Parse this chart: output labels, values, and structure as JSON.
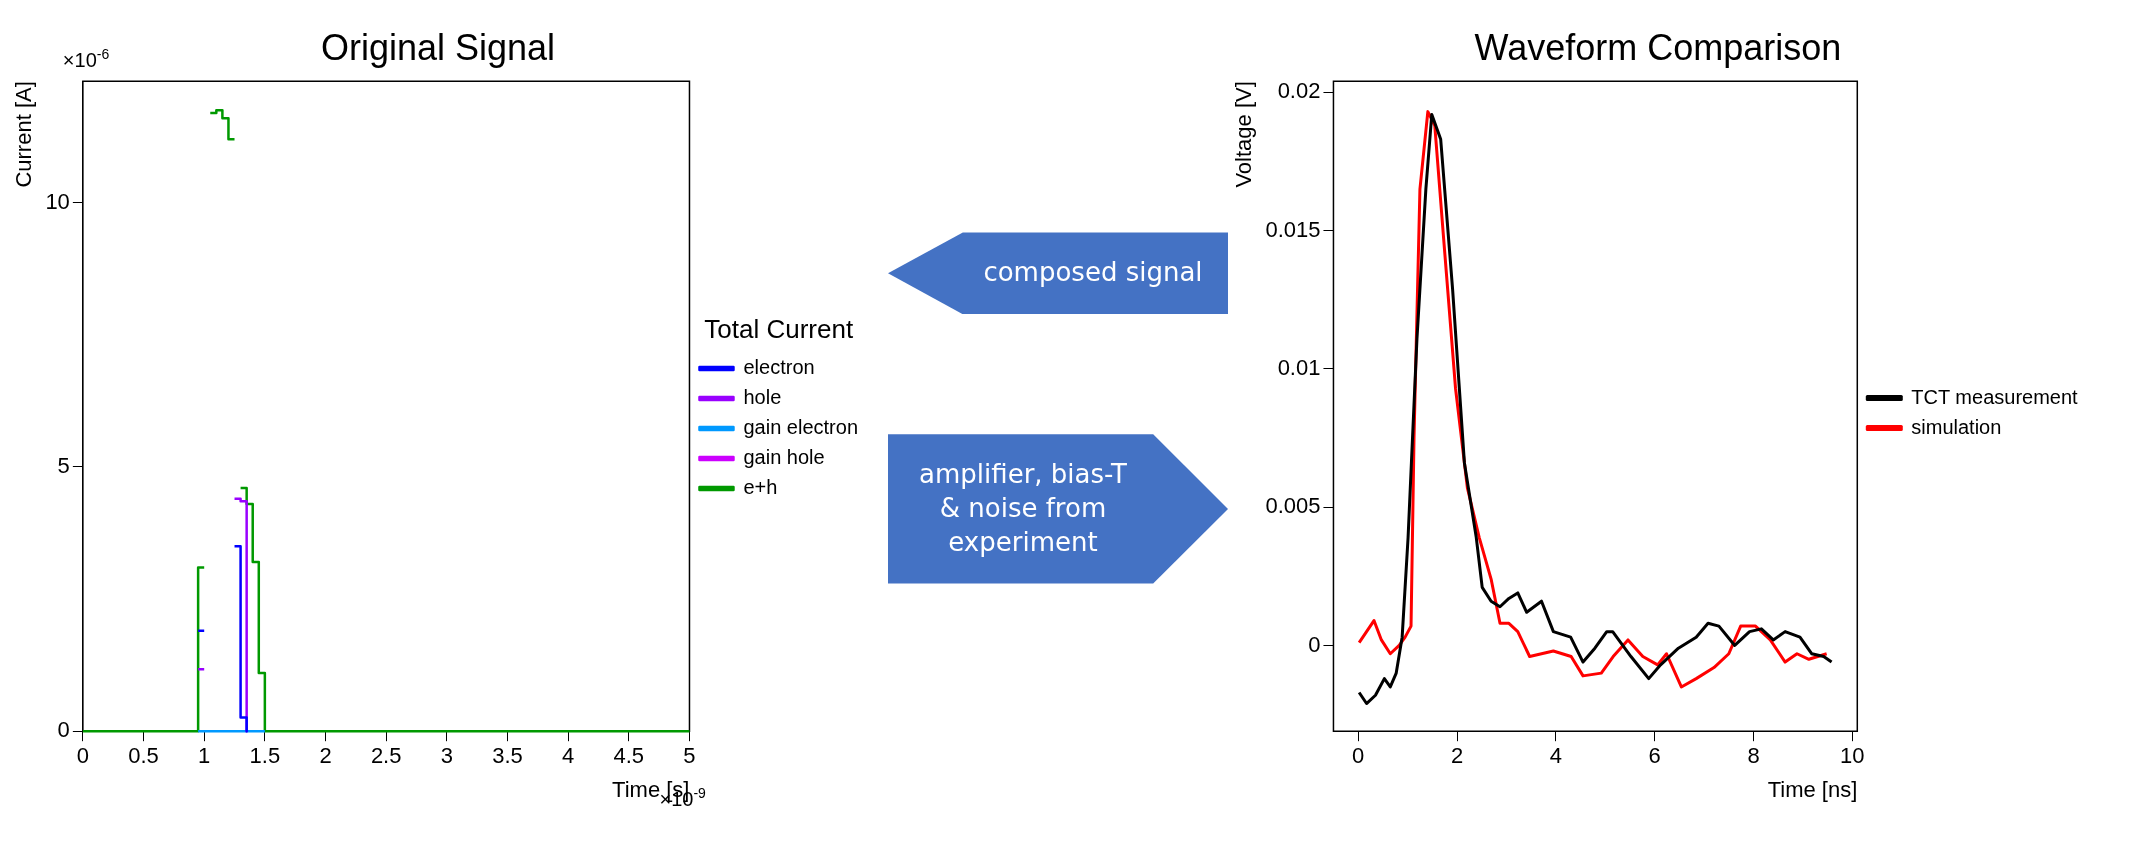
{
  "chart_data": [
    {
      "type": "step",
      "title": "Original Signal",
      "xlabel": "Time [s]",
      "ylabel": "Current [A]",
      "legend_title": "Total Current",
      "xlim": [
        0,
        5
      ],
      "xticks": [
        0,
        0.5,
        1,
        1.5,
        2,
        2.5,
        3,
        3.5,
        4,
        4.5,
        5
      ],
      "ylim": [
        0,
        12.3
      ],
      "yticks": [
        0,
        5,
        10
      ],
      "grid": false,
      "legend": "right",
      "annotations": [
        "×10$^{-6}$",
        "×10$^{-9}$"
      ],
      "series": [
        {
          "name": "electron",
          "color": "#0000ff",
          "x": [
            0.95,
            1.0,
            1.25,
            1.3,
            1.35
          ],
          "values": [
            1.9,
            null,
            3.5,
            0.26,
            0
          ]
        },
        {
          "name": "hole",
          "color": "#9900ff",
          "x": [
            0.95,
            1.0,
            1.25,
            1.3,
            1.35
          ],
          "values": [
            1.17,
            null,
            4.4,
            4.35,
            0
          ]
        },
        {
          "name": "gain electron",
          "color": "#0099ff",
          "x": [
            0.95,
            1.5
          ],
          "values": [
            0,
            0
          ]
        },
        {
          "name": "gain hole",
          "color": "#cc00ff"
        },
        {
          "name": "e+h",
          "color": "#009900",
          "x": [
            0,
            0.95,
            1.0,
            1.05,
            1.1,
            1.15,
            1.2,
            1.25,
            1.3,
            1.35,
            1.4,
            1.45,
            1.5,
            5
          ],
          "values": [
            0,
            3.1,
            null,
            11.7,
            11.75,
            11.6,
            11.2,
            null,
            4.6,
            4.3,
            3.2,
            1.1,
            0,
            0
          ]
        }
      ]
    },
    {
      "type": "line",
      "title": "Waveform Comparison",
      "xlabel": "Time [ns]",
      "ylabel": "Voltage [V]",
      "xlim": [
        -0.5,
        10.1
      ],
      "xticks": [
        0,
        2,
        4,
        6,
        8,
        10
      ],
      "ylim": [
        -0.0031,
        0.0204
      ],
      "yticks": [
        0,
        0.005,
        0.01,
        0.015,
        0.02
      ],
      "grid": false,
      "legend": "right",
      "series": [
        {
          "name": "TCT measurement",
          "color": "#000000",
          "x": [
            0.02,
            0.17,
            0.35,
            0.53,
            0.65,
            0.77,
            0.89,
            1.01,
            1.19,
            1.37,
            1.49,
            1.67,
            1.91,
            2.15,
            2.39,
            2.51,
            2.69,
            2.87,
            3.05,
            3.23,
            3.41,
            3.71,
            3.95,
            4.3,
            4.55,
            4.79,
            5.03,
            5.15,
            5.52,
            5.88,
            6.12,
            6.48,
            6.84,
            7.08,
            7.3,
            7.62,
            7.92,
            8.16,
            8.4,
            8.64,
            8.94,
            9.18,
            9.42,
            9.58
          ],
          "values": [
            -0.0017,
            -0.0021,
            -0.0018,
            -0.0012,
            -0.0015,
            -0.001,
            0.0003,
            0.0039,
            0.0111,
            0.0165,
            0.0192,
            0.0183,
            0.0129,
            0.0066,
            0.0039,
            0.0021,
            0.0016,
            0.0014,
            0.0017,
            0.0019,
            0.0012,
            0.0016,
            0.0005,
            0.0003,
            -0.0006,
            -0.0001,
            0.0005,
            0.0005,
            -0.0004,
            -0.0012,
            -0.0007,
            -0.0001,
            0.0003,
            0.0008,
            0.0007,
            0,
            0.0005,
            0.0006,
            0.0002,
            0.0005,
            0.0003,
            -0.0003,
            -0.0004,
            -0.0006
          ]
        },
        {
          "name": "simulation",
          "color": "#ff0000",
          "x": [
            0.02,
            0.17,
            0.32,
            0.47,
            0.65,
            0.83,
            0.95,
            1.07,
            1.13,
            1.25,
            1.41,
            1.55,
            1.73,
            1.97,
            2.21,
            2.45,
            2.69,
            2.87,
            3.05,
            3.23,
            3.47,
            3.71,
            3.95,
            4.31,
            4.55,
            4.92,
            5.16,
            5.46,
            5.76,
            6.06,
            6.24,
            6.54,
            6.84,
            7.2,
            7.5,
            7.74,
            8.04,
            8.34,
            8.64,
            8.88,
            9.12,
            9.48
          ],
          "values": [
            0.0001,
            0.0005,
            0.0009,
            0.0002,
            -0.0003,
            0,
            0.0003,
            0.0007,
            0.0075,
            0.0165,
            0.0193,
            0.0188,
            0.0147,
            0.0093,
            0.0057,
            0.0039,
            0.0024,
            0.0008,
            0.0008,
            0.0005,
            -0.0004,
            -0.0003,
            -0.0002,
            -0.0004,
            -0.0011,
            -0.001,
            -0.0004,
            0.0002,
            -0.0004,
            -0.0007,
            -0.0003,
            -0.0015,
            -0.0012,
            -0.0008,
            -0.0003,
            0.0007,
            0.0007,
            0.0002,
            -0.0006,
            -0.0003,
            -0.0005,
            -0.0003
          ]
        }
      ]
    },
    {
      "type": "other",
      "annotations": [
        "composed signal",
        "amplifier, bias-T & noise from experiment"
      ]
    }
  ]
}
